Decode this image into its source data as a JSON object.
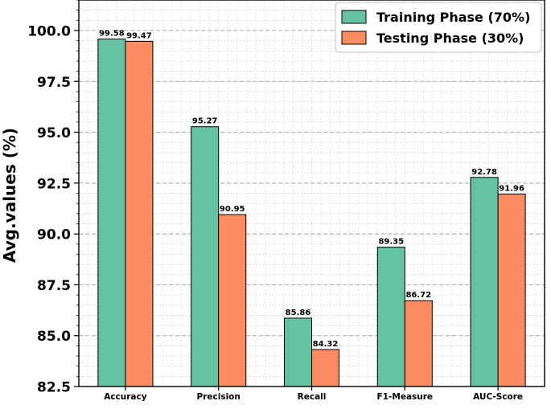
{
  "chart_data": {
    "type": "bar",
    "categories": [
      "Accuracy",
      "Precision",
      "Recall",
      "F1-Measure",
      "AUC-Score"
    ],
    "series": [
      {
        "name": "Training Phase (70%)",
        "values": [
          99.58,
          95.27,
          85.86,
          89.35,
          92.78
        ],
        "color": "#66c2a5"
      },
      {
        "name": "Testing Phase (30%)",
        "values": [
          99.47,
          90.95,
          84.32,
          86.72,
          91.96
        ],
        "color": "#fc8d62"
      }
    ],
    "value_labels": [
      [
        "99.58",
        "95.27",
        "85.86",
        "89.35",
        "92.78"
      ],
      [
        "99.47",
        "90.95",
        "84.32",
        "86.72",
        "91.96"
      ]
    ],
    "title": "",
    "xlabel": "",
    "ylabel": "Avg.values (%)",
    "ylim": [
      82.5,
      101.5
    ],
    "yticks": [
      82.5,
      85.0,
      87.5,
      90.0,
      92.5,
      95.0,
      97.5,
      100.0
    ],
    "ytick_labels": [
      "82.5",
      "85.0",
      "87.5",
      "90.0",
      "92.5",
      "95.0",
      "97.5",
      "100.0"
    ],
    "grid": true,
    "legend_position": "top-right"
  }
}
